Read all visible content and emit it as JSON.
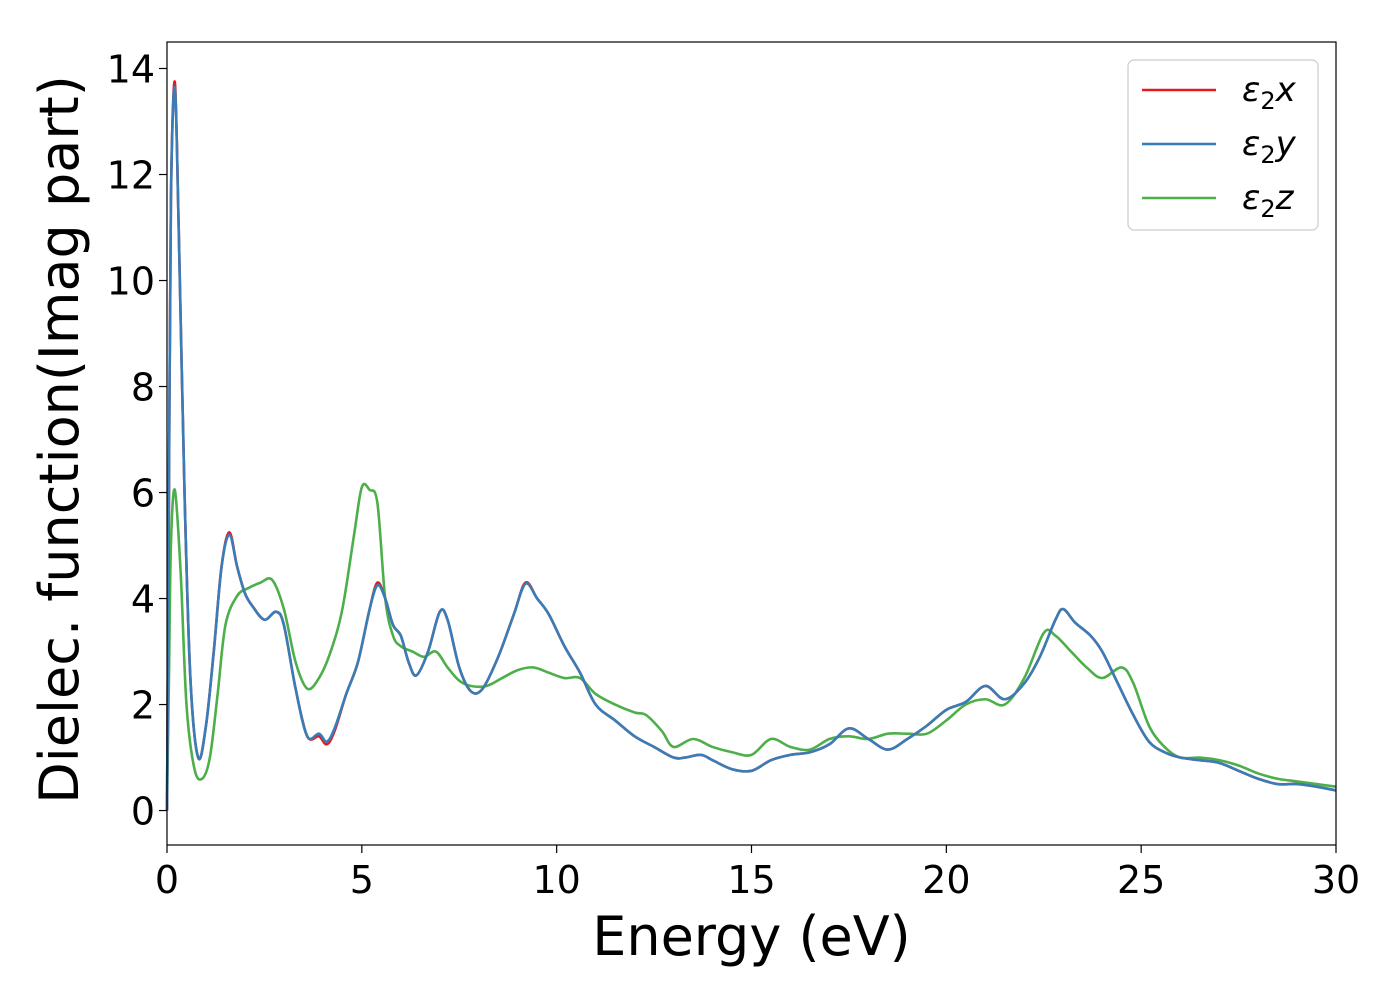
{
  "chart_data": {
    "type": "line",
    "xlabel": "Energy (eV)",
    "ylabel": "Dielec. function(Imag part)",
    "xlim": [
      0,
      30
    ],
    "ylim": [
      -0.65,
      14.5
    ],
    "xticks": [
      0,
      5,
      10,
      15,
      20,
      25,
      30
    ],
    "yticks": [
      0,
      2,
      4,
      6,
      8,
      10,
      12,
      14
    ],
    "grid": false,
    "legend_position": "top-right",
    "series": [
      {
        "name": "ε₂x",
        "legend_base": "ε",
        "legend_sub": "2",
        "legend_suffix": "x",
        "color": "#e41a1c",
        "x": [
          0,
          0.05,
          0.1,
          0.2,
          0.3,
          0.45,
          0.6,
          0.8,
          1.0,
          1.2,
          1.4,
          1.6,
          1.8,
          2.0,
          2.2,
          2.5,
          2.8,
          3.0,
          3.3,
          3.6,
          3.9,
          4.1,
          4.3,
          4.6,
          4.9,
          5.2,
          5.4,
          5.6,
          5.8,
          6.0,
          6.2,
          6.4,
          6.7,
          7.0,
          7.2,
          7.5,
          7.8,
          8.1,
          8.5,
          8.9,
          9.2,
          9.5,
          9.8,
          10.2,
          10.6,
          11.0,
          11.5,
          12.0,
          12.5,
          13.0,
          13.3,
          13.7,
          14.0,
          14.5,
          15.0,
          15.5,
          16.0,
          16.5,
          17.0,
          17.5,
          18.0,
          18.5,
          19.0,
          19.5,
          20.0,
          20.5,
          21.0,
          21.5,
          22.0,
          22.4,
          22.8,
          23.0,
          23.3,
          23.7,
          24.0,
          24.4,
          24.8,
          25.2,
          25.6,
          26.0,
          26.5,
          27.0,
          27.5,
          28.0,
          28.5,
          29.0,
          29.5,
          30.0
        ],
        "values": [
          0.0,
          6.0,
          11.5,
          13.75,
          11.0,
          6.0,
          2.5,
          1.0,
          1.6,
          3.0,
          4.6,
          5.25,
          4.6,
          4.1,
          3.85,
          3.6,
          3.75,
          3.5,
          2.3,
          1.4,
          1.4,
          1.25,
          1.5,
          2.2,
          2.8,
          3.8,
          4.3,
          4.0,
          3.5,
          3.3,
          2.8,
          2.55,
          3.0,
          3.75,
          3.6,
          2.7,
          2.25,
          2.3,
          2.9,
          3.7,
          4.3,
          4.0,
          3.7,
          3.1,
          2.6,
          2.0,
          1.7,
          1.4,
          1.2,
          1.0,
          1.0,
          1.05,
          0.95,
          0.78,
          0.75,
          0.95,
          1.05,
          1.1,
          1.25,
          1.55,
          1.35,
          1.15,
          1.35,
          1.6,
          1.9,
          2.05,
          2.35,
          2.1,
          2.4,
          2.9,
          3.6,
          3.8,
          3.55,
          3.3,
          3.0,
          2.4,
          1.8,
          1.3,
          1.1,
          1.0,
          0.95,
          0.9,
          0.75,
          0.6,
          0.5,
          0.5,
          0.45,
          0.38
        ]
      },
      {
        "name": "ε₂y",
        "legend_base": "ε",
        "legend_sub": "2",
        "legend_suffix": "y",
        "color": "#377eb8",
        "x": [
          0,
          0.05,
          0.1,
          0.2,
          0.3,
          0.45,
          0.6,
          0.8,
          1.0,
          1.2,
          1.4,
          1.6,
          1.8,
          2.0,
          2.2,
          2.5,
          2.8,
          3.0,
          3.3,
          3.6,
          3.9,
          4.1,
          4.3,
          4.6,
          4.9,
          5.2,
          5.4,
          5.6,
          5.8,
          6.0,
          6.2,
          6.4,
          6.7,
          7.0,
          7.2,
          7.5,
          7.8,
          8.1,
          8.5,
          8.9,
          9.2,
          9.5,
          9.8,
          10.2,
          10.6,
          11.0,
          11.5,
          12.0,
          12.5,
          13.0,
          13.3,
          13.7,
          14.0,
          14.5,
          15.0,
          15.5,
          16.0,
          16.5,
          17.0,
          17.5,
          18.0,
          18.5,
          19.0,
          19.5,
          20.0,
          20.5,
          21.0,
          21.5,
          22.0,
          22.4,
          22.8,
          23.0,
          23.3,
          23.7,
          24.0,
          24.4,
          24.8,
          25.2,
          25.6,
          26.0,
          26.5,
          27.0,
          27.5,
          28.0,
          28.5,
          29.0,
          29.5,
          30.0
        ],
        "values": [
          0.0,
          6.0,
          11.5,
          13.65,
          11.0,
          6.0,
          2.5,
          1.0,
          1.6,
          3.0,
          4.6,
          5.2,
          4.6,
          4.1,
          3.85,
          3.6,
          3.75,
          3.5,
          2.3,
          1.4,
          1.45,
          1.3,
          1.55,
          2.2,
          2.8,
          3.8,
          4.25,
          4.0,
          3.5,
          3.3,
          2.8,
          2.55,
          3.0,
          3.75,
          3.6,
          2.7,
          2.25,
          2.3,
          2.9,
          3.7,
          4.28,
          4.0,
          3.7,
          3.1,
          2.6,
          2.0,
          1.7,
          1.4,
          1.2,
          1.0,
          1.0,
          1.05,
          0.95,
          0.78,
          0.75,
          0.95,
          1.05,
          1.1,
          1.25,
          1.55,
          1.35,
          1.15,
          1.35,
          1.6,
          1.9,
          2.05,
          2.35,
          2.1,
          2.4,
          2.9,
          3.6,
          3.8,
          3.55,
          3.3,
          3.0,
          2.4,
          1.8,
          1.3,
          1.1,
          1.0,
          0.95,
          0.9,
          0.75,
          0.6,
          0.5,
          0.5,
          0.45,
          0.38
        ]
      },
      {
        "name": "ε₂z",
        "legend_base": "ε",
        "legend_sub": "2",
        "legend_suffix": "z",
        "color": "#4daf4a",
        "x": [
          0,
          0.05,
          0.1,
          0.2,
          0.35,
          0.5,
          0.7,
          0.9,
          1.1,
          1.3,
          1.5,
          1.8,
          2.1,
          2.4,
          2.7,
          3.0,
          3.3,
          3.6,
          3.9,
          4.2,
          4.5,
          4.8,
          5.0,
          5.2,
          5.4,
          5.6,
          5.8,
          6.0,
          6.3,
          6.6,
          6.9,
          7.2,
          7.5,
          7.8,
          8.2,
          8.6,
          9.0,
          9.4,
          9.8,
          10.2,
          10.6,
          11.0,
          11.5,
          12.0,
          12.3,
          12.7,
          13.0,
          13.5,
          14.0,
          14.5,
          15.0,
          15.5,
          16.0,
          16.5,
          17.0,
          17.5,
          18.0,
          18.5,
          19.0,
          19.5,
          20.0,
          20.5,
          21.0,
          21.5,
          22.0,
          22.5,
          22.8,
          23.2,
          23.6,
          24.0,
          24.5,
          24.8,
          25.2,
          25.6,
          26.0,
          26.5,
          27.0,
          27.5,
          28.0,
          28.5,
          29.0,
          29.5,
          30.0
        ],
        "values": [
          0.0,
          2.5,
          5.0,
          6.05,
          4.5,
          2.0,
          0.8,
          0.6,
          1.0,
          2.2,
          3.5,
          4.05,
          4.2,
          4.3,
          4.35,
          3.8,
          2.8,
          2.3,
          2.5,
          3.0,
          3.8,
          5.2,
          6.1,
          6.05,
          5.8,
          4.0,
          3.3,
          3.1,
          3.0,
          2.9,
          3.0,
          2.7,
          2.45,
          2.35,
          2.35,
          2.5,
          2.65,
          2.7,
          2.6,
          2.5,
          2.5,
          2.2,
          2.0,
          1.85,
          1.8,
          1.5,
          1.2,
          1.35,
          1.2,
          1.1,
          1.05,
          1.35,
          1.2,
          1.15,
          1.35,
          1.4,
          1.35,
          1.45,
          1.45,
          1.45,
          1.7,
          2.0,
          2.1,
          2.0,
          2.5,
          3.35,
          3.3,
          3.0,
          2.7,
          2.5,
          2.7,
          2.4,
          1.6,
          1.2,
          1.0,
          1.0,
          0.95,
          0.85,
          0.7,
          0.6,
          0.55,
          0.5,
          0.45
        ]
      }
    ]
  }
}
